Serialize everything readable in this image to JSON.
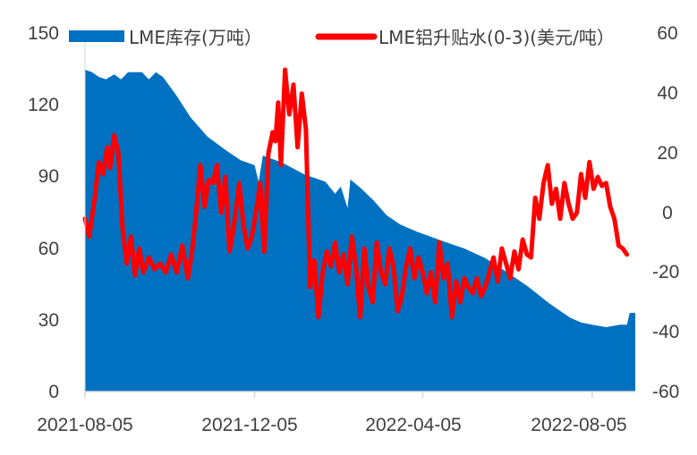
{
  "chart_data": {
    "type": "area+line",
    "title": "",
    "colors": {
      "inventory": "#0070c0",
      "spread": "#ff0000",
      "axis": "#d9d9d9",
      "text": "#404040"
    },
    "legend": {
      "position": "top",
      "inventory_label": "LME库存(万吨）",
      "spread_label": "LME铝升贴水(0-3)(美元/吨）"
    },
    "x_axis": {
      "start": "2021-08-05",
      "end": "2022-09-05",
      "tick_labels": [
        "2021-08-05",
        "2021-12-05",
        "2022-04-05",
        "2022-08-05"
      ]
    },
    "y_left": {
      "min": 0,
      "max": 150,
      "ticks": [
        "0",
        "30",
        "60",
        "90",
        "120",
        "150"
      ]
    },
    "y_right": {
      "min": -60,
      "max": 60,
      "ticks": [
        "-60",
        "-40",
        "-20",
        "0",
        "20",
        "40",
        "60"
      ]
    },
    "series": [
      {
        "name": "LME库存(万吨）",
        "type": "area",
        "axis": "left",
        "points": [
          [
            "2021-08-05",
            135
          ],
          [
            "2021-08-10",
            134
          ],
          [
            "2021-08-15",
            132
          ],
          [
            "2021-08-20",
            131
          ],
          [
            "2021-08-26",
            133
          ],
          [
            "2021-08-31",
            131
          ],
          [
            "2021-09-05",
            134
          ],
          [
            "2021-09-15",
            134
          ],
          [
            "2021-09-20",
            131
          ],
          [
            "2021-09-25",
            134
          ],
          [
            "2021-09-30",
            132
          ],
          [
            "2021-10-10",
            124
          ],
          [
            "2021-10-20",
            115
          ],
          [
            "2021-11-01",
            107
          ],
          [
            "2021-11-15",
            101
          ],
          [
            "2021-11-25",
            97
          ],
          [
            "2021-12-05",
            95
          ],
          [
            "2021-12-08",
            88
          ],
          [
            "2021-12-11",
            99
          ],
          [
            "2021-12-25",
            96
          ],
          [
            "2022-01-10",
            91
          ],
          [
            "2022-01-25",
            88
          ],
          [
            "2022-02-01",
            83
          ],
          [
            "2022-02-05",
            86
          ],
          [
            "2022-02-10",
            77
          ],
          [
            "2022-02-12",
            89
          ],
          [
            "2022-02-20",
            85
          ],
          [
            "2022-03-01",
            80
          ],
          [
            "2022-03-10",
            74
          ],
          [
            "2022-03-20",
            70
          ],
          [
            "2022-04-01",
            67
          ],
          [
            "2022-04-20",
            63
          ],
          [
            "2022-05-05",
            60
          ],
          [
            "2022-05-20",
            56
          ],
          [
            "2022-06-05",
            50
          ],
          [
            "2022-06-20",
            44
          ],
          [
            "2022-07-05",
            37
          ],
          [
            "2022-07-20",
            31
          ],
          [
            "2022-07-28",
            29
          ],
          [
            "2022-08-05",
            28
          ],
          [
            "2022-08-15",
            27
          ],
          [
            "2022-08-25",
            28
          ],
          [
            "2022-08-30",
            28
          ],
          [
            "2022-09-01",
            33
          ],
          [
            "2022-09-05",
            33
          ]
        ]
      },
      {
        "name": "LME铝升贴水(0-3)(美元/吨）",
        "type": "line",
        "axis": "right",
        "points": [
          [
            "2021-08-05",
            -2
          ],
          [
            "2021-08-08",
            -8
          ],
          [
            "2021-08-12",
            5
          ],
          [
            "2021-08-15",
            17
          ],
          [
            "2021-08-18",
            13
          ],
          [
            "2021-08-21",
            22
          ],
          [
            "2021-08-23",
            15
          ],
          [
            "2021-08-26",
            26
          ],
          [
            "2021-08-29",
            20
          ],
          [
            "2021-09-01",
            -5
          ],
          [
            "2021-09-04",
            -17
          ],
          [
            "2021-09-07",
            -8
          ],
          [
            "2021-09-10",
            -21
          ],
          [
            "2021-09-13",
            -12
          ],
          [
            "2021-09-16",
            -20
          ],
          [
            "2021-09-20",
            -15
          ],
          [
            "2021-09-24",
            -19
          ],
          [
            "2021-09-28",
            -17
          ],
          [
            "2021-10-02",
            -20
          ],
          [
            "2021-10-06",
            -14
          ],
          [
            "2021-10-10",
            -20
          ],
          [
            "2021-10-14",
            -11
          ],
          [
            "2021-10-18",
            -22
          ],
          [
            "2021-10-21",
            -13
          ],
          [
            "2021-10-24",
            0
          ],
          [
            "2021-10-27",
            16
          ],
          [
            "2021-10-30",
            2
          ],
          [
            "2021-11-02",
            11
          ],
          [
            "2021-11-05",
            10
          ],
          [
            "2021-11-08",
            16
          ],
          [
            "2021-11-11",
            0
          ],
          [
            "2021-11-14",
            12
          ],
          [
            "2021-11-17",
            -13
          ],
          [
            "2021-11-20",
            -5
          ],
          [
            "2021-11-24",
            10
          ],
          [
            "2021-11-27",
            -4
          ],
          [
            "2021-11-30",
            -12
          ],
          [
            "2021-12-03",
            -8
          ],
          [
            "2021-12-06",
            0
          ],
          [
            "2021-12-09",
            10
          ],
          [
            "2021-12-12",
            -13
          ],
          [
            "2021-12-15",
            20
          ],
          [
            "2021-12-18",
            27
          ],
          [
            "2021-12-20",
            24
          ],
          [
            "2021-12-22",
            37
          ],
          [
            "2021-12-24",
            16
          ],
          [
            "2021-12-27",
            48
          ],
          [
            "2021-12-30",
            33
          ],
          [
            "2022-01-02",
            43
          ],
          [
            "2022-01-05",
            22
          ],
          [
            "2022-01-08",
            40
          ],
          [
            "2022-01-11",
            28
          ],
          [
            "2022-01-14",
            -25
          ],
          [
            "2022-01-17",
            -16
          ],
          [
            "2022-01-20",
            -35
          ],
          [
            "2022-01-23",
            -20
          ],
          [
            "2022-01-26",
            -13
          ],
          [
            "2022-01-29",
            -18
          ],
          [
            "2022-02-01",
            -10
          ],
          [
            "2022-02-04",
            -20
          ],
          [
            "2022-02-07",
            -14
          ],
          [
            "2022-02-10",
            -24
          ],
          [
            "2022-02-13",
            -8
          ],
          [
            "2022-02-16",
            -18
          ],
          [
            "2022-02-19",
            -35
          ],
          [
            "2022-02-22",
            -12
          ],
          [
            "2022-02-25",
            -25
          ],
          [
            "2022-02-28",
            -30
          ],
          [
            "2022-03-03",
            -10
          ],
          [
            "2022-03-06",
            -20
          ],
          [
            "2022-03-09",
            -24
          ],
          [
            "2022-03-12",
            -12
          ],
          [
            "2022-03-15",
            -18
          ],
          [
            "2022-03-18",
            -33
          ],
          [
            "2022-03-21",
            -28
          ],
          [
            "2022-03-24",
            -18
          ],
          [
            "2022-03-27",
            -12
          ],
          [
            "2022-03-30",
            -22
          ],
          [
            "2022-04-02",
            -15
          ],
          [
            "2022-04-05",
            -20
          ],
          [
            "2022-04-08",
            -27
          ],
          [
            "2022-04-11",
            -20
          ],
          [
            "2022-04-14",
            -30
          ],
          [
            "2022-04-17",
            -10
          ],
          [
            "2022-04-20",
            -22
          ],
          [
            "2022-04-23",
            -17
          ],
          [
            "2022-04-26",
            -35
          ],
          [
            "2022-04-29",
            -23
          ],
          [
            "2022-05-02",
            -30
          ],
          [
            "2022-05-05",
            -22
          ],
          [
            "2022-05-08",
            -25
          ],
          [
            "2022-05-11",
            -27
          ],
          [
            "2022-05-14",
            -22
          ],
          [
            "2022-05-17",
            -28
          ],
          [
            "2022-05-20",
            -25
          ],
          [
            "2022-05-23",
            -20
          ],
          [
            "2022-05-26",
            -15
          ],
          [
            "2022-05-29",
            -23
          ],
          [
            "2022-06-01",
            -12
          ],
          [
            "2022-06-04",
            -17
          ],
          [
            "2022-06-07",
            -22
          ],
          [
            "2022-06-10",
            -13
          ],
          [
            "2022-06-13",
            -19
          ],
          [
            "2022-06-16",
            -9
          ],
          [
            "2022-06-19",
            -14
          ],
          [
            "2022-06-22",
            -15
          ],
          [
            "2022-06-25",
            5
          ],
          [
            "2022-06-28",
            -2
          ],
          [
            "2022-07-01",
            10
          ],
          [
            "2022-07-04",
            16
          ],
          [
            "2022-07-07",
            3
          ],
          [
            "2022-07-10",
            8
          ],
          [
            "2022-07-13",
            -2
          ],
          [
            "2022-07-16",
            10
          ],
          [
            "2022-07-19",
            3
          ],
          [
            "2022-07-22",
            -2
          ],
          [
            "2022-07-25",
            0
          ],
          [
            "2022-07-28",
            13
          ],
          [
            "2022-07-31",
            5
          ],
          [
            "2022-08-03",
            17
          ],
          [
            "2022-08-06",
            8
          ],
          [
            "2022-08-09",
            12
          ],
          [
            "2022-08-12",
            9
          ],
          [
            "2022-08-15",
            10
          ],
          [
            "2022-08-18",
            2
          ],
          [
            "2022-08-21",
            -2
          ],
          [
            "2022-08-24",
            -11
          ],
          [
            "2022-08-27",
            -12
          ],
          [
            "2022-08-30",
            -14
          ]
        ]
      }
    ]
  }
}
